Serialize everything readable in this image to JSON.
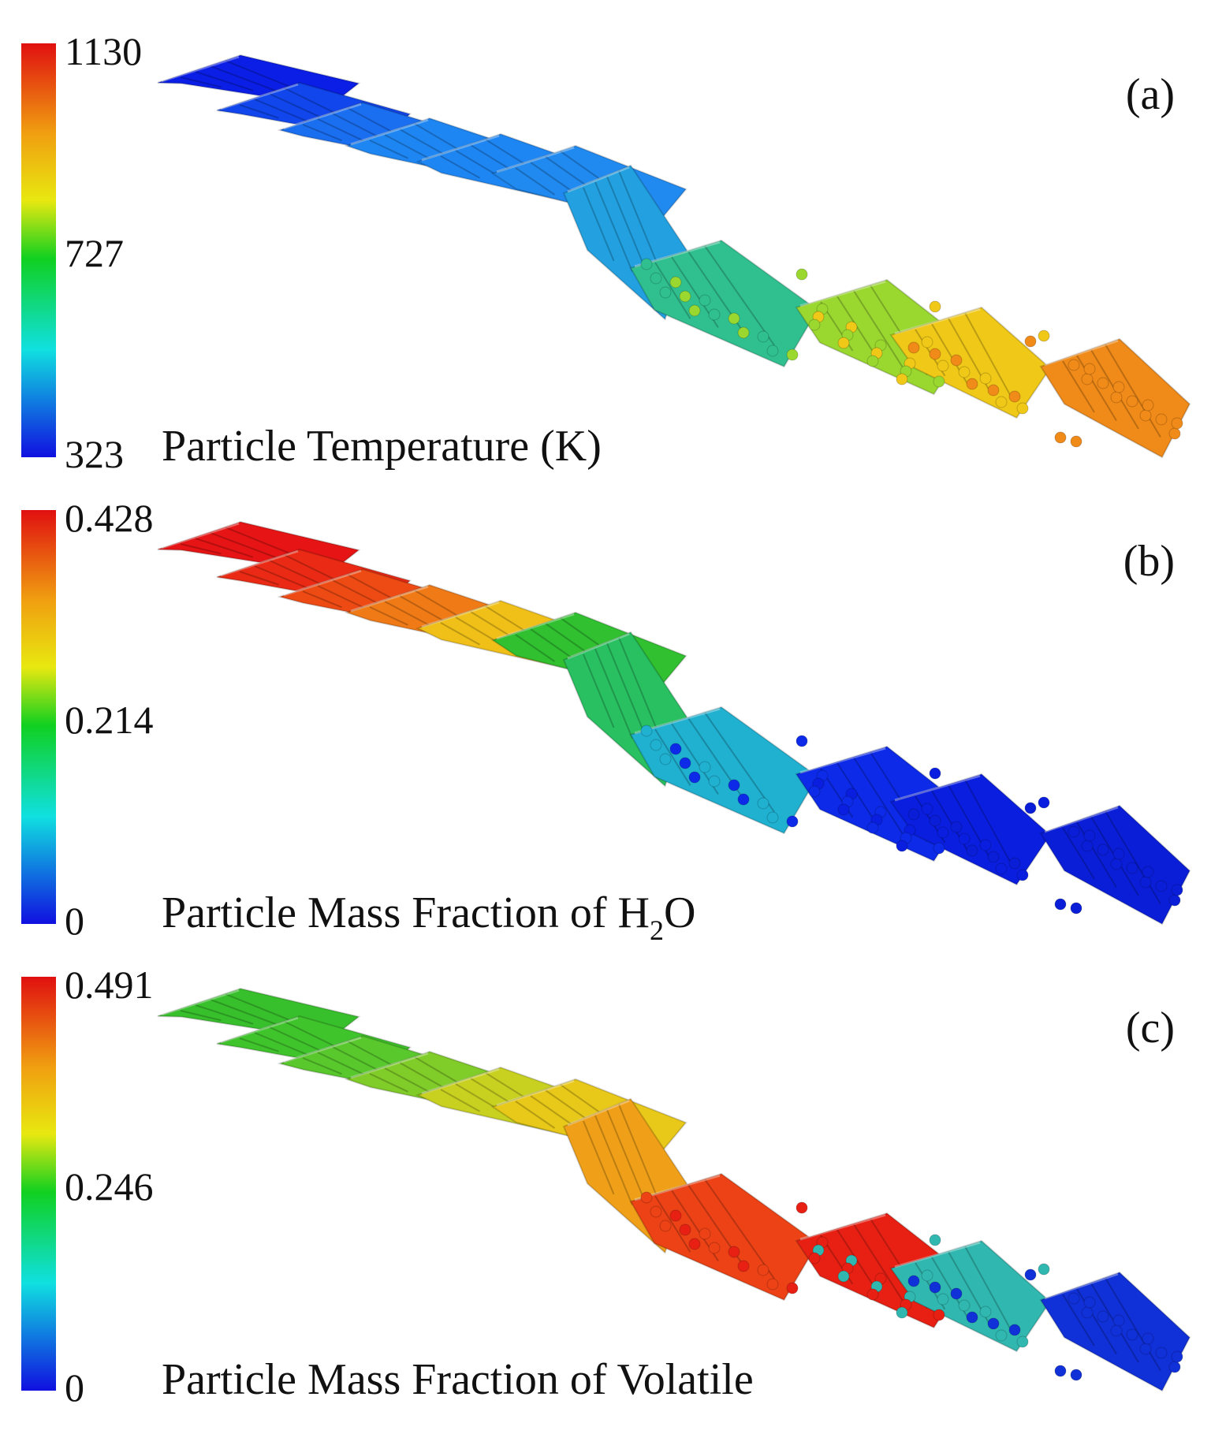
{
  "panels": [
    {
      "label": "(a)",
      "title": "Particle Temperature (K)",
      "title_main": "Particle Temperature (K)",
      "title_sub": "",
      "title_tail": "",
      "scale": {
        "max": "1130",
        "mid": "727",
        "min": "323"
      },
      "colors": [
        "#0a1ee6",
        "#1046ec",
        "#1a6ef0",
        "#1e86f2",
        "#1e86f2",
        "#208af0",
        "#22a0e0",
        "#30c090",
        "#9ad830",
        "#f0c818",
        "#f08a18"
      ]
    },
    {
      "label": "(b)",
      "title": "Particle Mass Fraction of H2O",
      "title_main": "Particle Mass Fraction of H",
      "title_sub": "2",
      "title_tail": "O",
      "scale": {
        "max": "0.428",
        "mid": "0.214",
        "min": "0"
      },
      "colors": [
        "#e61414",
        "#ea2a14",
        "#ee4a14",
        "#f07a16",
        "#f0c018",
        "#30c030",
        "#28c060",
        "#20b0d0",
        "#0c2ae8",
        "#0a1ee0",
        "#0a1ed8"
      ]
    },
    {
      "label": "(c)",
      "title": "Particle Mass Fraction of Volatile",
      "title_main": "Particle Mass Fraction of Volatile",
      "title_sub": "",
      "title_tail": "",
      "scale": {
        "max": "0.491",
        "mid": "0.246",
        "min": "0"
      },
      "colors": [
        "#38c02c",
        "#40c42c",
        "#58c82c",
        "#80cc28",
        "#c8d020",
        "#e8c818",
        "#f0a018",
        "#ec4216",
        "#e82014",
        "#30b8b0",
        "#1030d8"
      ]
    }
  ],
  "colorbar": [
    "#e01010",
    "#f0a010",
    "#e8e810",
    "#10d020",
    "#10e0e0",
    "#1010e0"
  ]
}
